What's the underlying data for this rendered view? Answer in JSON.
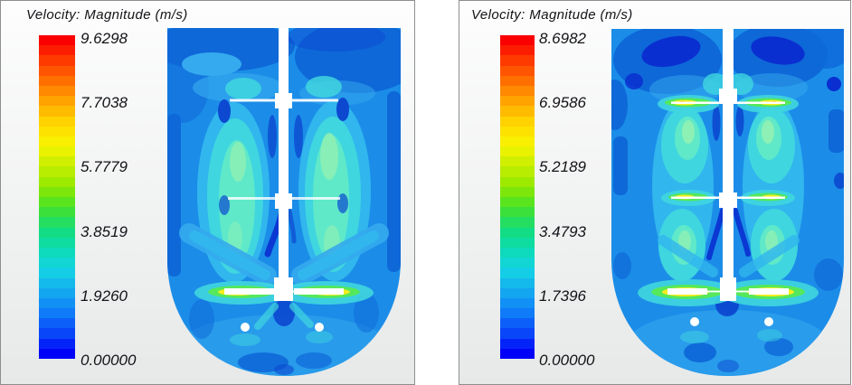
{
  "palette": {
    "panel_background_top": "#fdfdfd",
    "panel_background_bottom": "#e7e9e9",
    "panel_border": "#8e8e8e",
    "gap_background": "#ffffff",
    "text": "#131318",
    "field": {
      "base": "#1b8de8",
      "blue2": "#35aaee",
      "blue_dark": "#0e68d8",
      "navy": "#0a2fd0",
      "navy2": "#0c48d0",
      "cyan": "#31b6ee",
      "cyan2": "#3fd6df",
      "aqua": "#5fe9c9",
      "mint": "#8df0b4",
      "green": "#55e85c",
      "yellow": "#f2ee1c",
      "orange": "#ff9012",
      "red": "#f03800",
      "white": "#ffffff"
    }
  },
  "colormap": {
    "bands": 32,
    "stops_top_to_bottom": [
      "#fa0000",
      "#ff3c00",
      "#ff7300",
      "#ffa800",
      "#ffd800",
      "#f8f400",
      "#c8ee00",
      "#90e800",
      "#46e228",
      "#14dc78",
      "#0cdcb4",
      "#14d2e4",
      "#14aaf0",
      "#0f7ef8",
      "#0948fa",
      "#0000f8"
    ]
  },
  "panels": [
    {
      "title": "Velocity: Magnitude (m/s)",
      "colorbar_labels": [
        "9.6298",
        "7.7038",
        "5.7779",
        "3.8519",
        "1.9260",
        "0.00000"
      ]
    },
    {
      "title": "Velocity: Magnitude (m/s)",
      "colorbar_labels": [
        "8.6982",
        "6.9586",
        "5.2189",
        "3.4793",
        "1.7396",
        "0.00000"
      ]
    }
  ],
  "chart_data": [
    {
      "type": "heatmap",
      "title": "Velocity: Magnitude (m/s)",
      "units": "m/s",
      "colorbar": {
        "orientation": "vertical",
        "position": "left",
        "min": 0.0,
        "max": 9.6298,
        "tick_values": [
          9.6298,
          7.7038,
          5.7779,
          3.8519,
          1.926,
          0.0
        ],
        "tick_labels": [
          "9.6298",
          "7.7038",
          "5.7779",
          "3.8519",
          "1.9260",
          "0.00000"
        ],
        "colormap": "discrete rainbow, blue(0) to red(max), ~32 bands"
      },
      "scene": "CFD velocity-magnitude contour on the vertical mid-plane of a round-bottom stirred vessel; central shaft with three impellers; bulk flow blue-cyan (~0.5-3.5 m/s); tall aqua upflow columns beside the shaft; strongest jets (green-yellow-orange, ~5-8 m/s) at the bottom impeller blade tips; two small circular ports below the bottom impeller"
    },
    {
      "type": "heatmap",
      "title": "Velocity: Magnitude (m/s)",
      "units": "m/s",
      "colorbar": {
        "orientation": "vertical",
        "position": "left",
        "min": 0.0,
        "max": 8.6982,
        "tick_values": [
          8.6982,
          6.9586,
          5.2189,
          3.4793,
          1.7396,
          0.0
        ],
        "tick_labels": [
          "8.6982",
          "6.9586",
          "5.2189",
          "3.4793",
          "1.7396",
          "0.00000"
        ],
        "colormap": "discrete rainbow, blue(0) to red(max), ~32 bands"
      },
      "scene": "Same stirred vessel; radial green-yellow jets now visible at all three impellers, strongest (orange-red core) at the bottom impeller; dark navy low-velocity pockets near the free surface; two small circular ports below the bottom impeller"
    }
  ]
}
